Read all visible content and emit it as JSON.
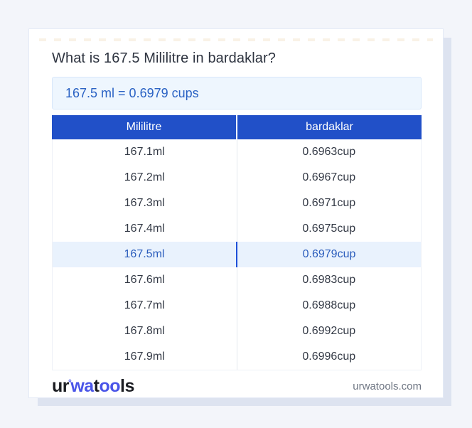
{
  "card": {
    "title": "What is 167.5 Mililitre in bardaklar?",
    "answer": "167.5 ml = 0.6979 cups"
  },
  "table": {
    "headers": [
      "Mililitre",
      "bardaklar"
    ],
    "rows": [
      {
        "ml": "167.1ml",
        "cup": "0.6963cup"
      },
      {
        "ml": "167.2ml",
        "cup": "0.6967cup"
      },
      {
        "ml": "167.3ml",
        "cup": "0.6971cup"
      },
      {
        "ml": "167.4ml",
        "cup": "0.6975cup"
      },
      {
        "ml": "167.5ml",
        "cup": "0.6979cup"
      },
      {
        "ml": "167.6ml",
        "cup": "0.6983cup"
      },
      {
        "ml": "167.7ml",
        "cup": "0.6988cup"
      },
      {
        "ml": "167.8ml",
        "cup": "0.6992cup"
      },
      {
        "ml": "167.9ml",
        "cup": "0.6996cup"
      }
    ],
    "highlight_index": 4
  },
  "footer": {
    "logo": {
      "part1": "ur",
      "degree": "°",
      "part2": "wa",
      "part3": "t",
      "part4": "oo",
      "part5": "ls"
    },
    "domain": "urwatools.com"
  },
  "colors": {
    "page_bg": "#f3f5fa",
    "card_bg": "#ffffff",
    "header_bg": "#2150c8",
    "header_text": "#ffffff",
    "answer_bg": "#eef6fe",
    "answer_border": "#d8e7fa",
    "answer_text": "#2a62c4",
    "highlight_bg": "#e9f2fd",
    "highlight_text": "#2a5cbc",
    "highlight_divider": "#1d4ed8",
    "body_text": "#333945",
    "title_text": "#2e3440",
    "muted_text": "#6f7683",
    "logo_accent": "#4a55e8",
    "logo_dark": "#1b1d22",
    "shadow": "#dde3f0"
  }
}
